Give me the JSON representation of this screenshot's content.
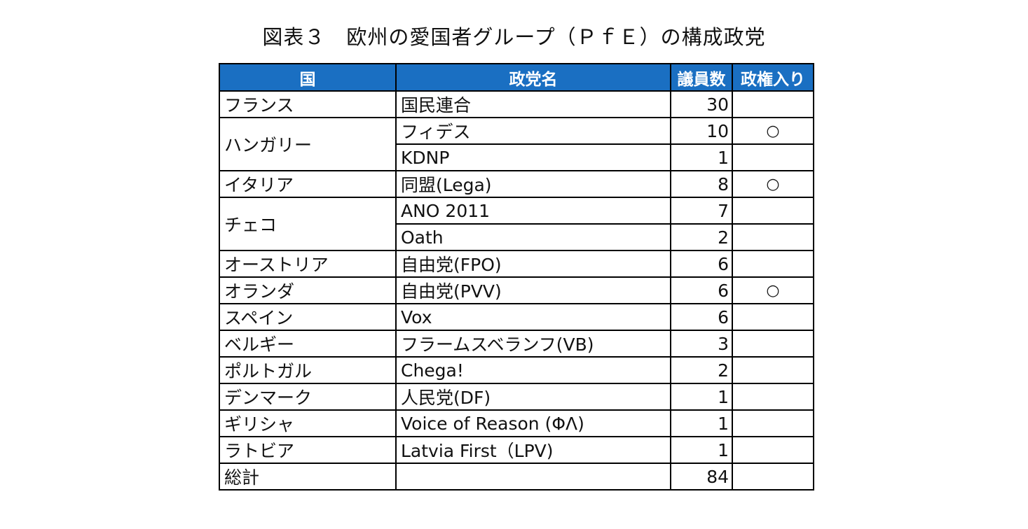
{
  "title": "図表３　欧州の愛国者グループ（ＰｆＥ）の構成政党",
  "headers": [
    "国",
    "政党名",
    "議員数",
    "政権入り"
  ],
  "rows": [
    {
      "country": "フランス",
      "party": "国民連合",
      "seats": "30",
      "gov": ""
    },
    {
      "country": "ハンガリー",
      "party": "フィデス",
      "seats": "10",
      "gov": "○"
    },
    {
      "country": "",
      "party": "KDNP",
      "seats": "1",
      "gov": ""
    },
    {
      "country": "イタリア",
      "party": "同盟(Lega)",
      "seats": "8",
      "gov": "○"
    },
    {
      "country": "チェコ",
      "party": "ANO 2011",
      "seats": "7",
      "gov": ""
    },
    {
      "country": "",
      "party": "Oath",
      "seats": "2",
      "gov": ""
    },
    {
      "country": "オーストリア",
      "party": "自由党(FPO)",
      "seats": "6",
      "gov": ""
    },
    {
      "country": "オランダ",
      "party": "自由党(PVV)",
      "seats": "6",
      "gov": "○"
    },
    {
      "country": "スペイン",
      "party": "Vox",
      "seats": "6",
      "gov": ""
    },
    {
      "country": "ベルギー",
      "party": "フラームスベランフ(VB)",
      "seats": "3",
      "gov": ""
    },
    {
      "country": "ポルトガル",
      "party": "Chega!",
      "seats": "2",
      "gov": ""
    },
    {
      "country": "デンマーク",
      "party": "人民党(DF)",
      "seats": "1",
      "gov": ""
    },
    {
      "country": "ギリシャ",
      "party": "Voice of Reason (ΦΛ)",
      "seats": "1",
      "gov": ""
    },
    {
      "country": "ラトビア",
      "party": "Latvia First（LPV)",
      "seats": "1",
      "gov": ""
    },
    {
      "country": "総計",
      "party": "",
      "seats": "84",
      "gov": ""
    }
  ]
}
